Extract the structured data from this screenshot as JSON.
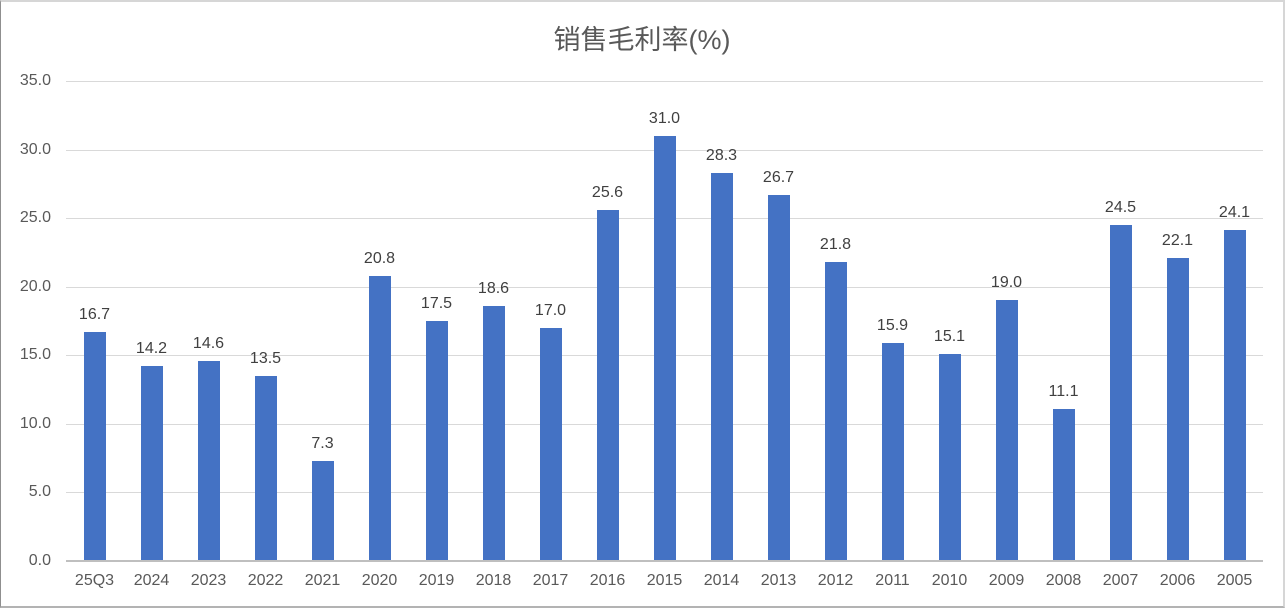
{
  "chart_data": {
    "type": "bar",
    "title": "销售毛利率(%)",
    "categories": [
      "25Q3",
      "2024",
      "2023",
      "2022",
      "2021",
      "2020",
      "2019",
      "2018",
      "2017",
      "2016",
      "2015",
      "2014",
      "2013",
      "2012",
      "2011",
      "2010",
      "2009",
      "2008",
      "2007",
      "2006",
      "2005"
    ],
    "values": [
      16.7,
      14.2,
      14.6,
      13.5,
      7.3,
      20.8,
      17.5,
      18.6,
      17.0,
      25.6,
      31.0,
      28.3,
      26.7,
      21.8,
      15.9,
      15.1,
      19.0,
      11.1,
      24.5,
      22.1,
      24.1
    ],
    "data_labels": [
      "16.7",
      "14.2",
      "14.6",
      "13.5",
      "7.3",
      "20.8",
      "17.5",
      "18.6",
      "17.0",
      "25.6",
      "31.0",
      "28.3",
      "26.7",
      "21.8",
      "15.9",
      "15.1",
      "19.0",
      "11.1",
      "24.5",
      "22.1",
      "24.1"
    ],
    "xlabel": "",
    "ylabel": "",
    "ylim": [
      0,
      35
    ],
    "ytick_step": 5,
    "ytick_labels": [
      "0.0",
      "5.0",
      "10.0",
      "15.0",
      "20.0",
      "25.0",
      "30.0",
      "35.0"
    ],
    "grid": true,
    "legend": "none",
    "colors": {
      "bar": "#4472C4",
      "title_text": "#595959",
      "axis_tick_text": "#595959",
      "data_label_text": "#404040",
      "gridline": "#D9D9D9",
      "axis_line": "#BFBFBF",
      "background": "#FFFFFF"
    }
  }
}
